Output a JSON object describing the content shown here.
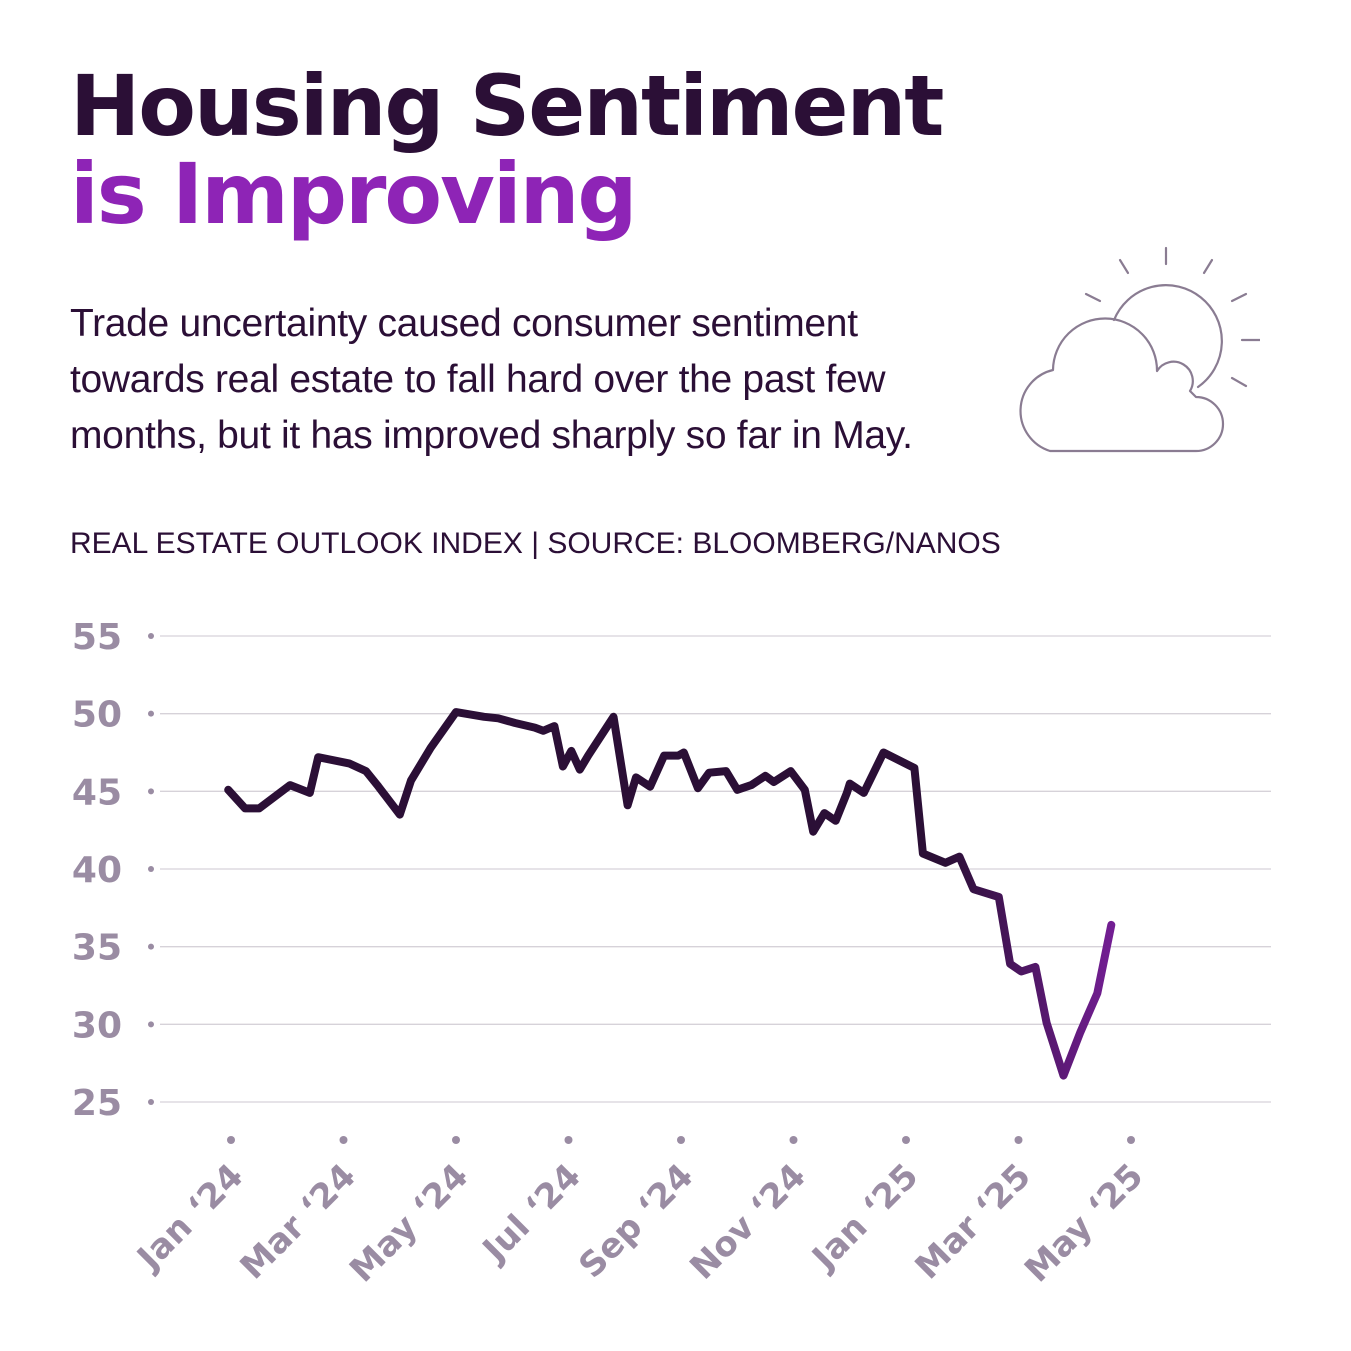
{
  "header": {
    "title_line1": "Housing Sentiment",
    "title_line2": "is Improving",
    "subtitle": "Trade uncertainty caused consumer sentiment towards real estate to fall hard over the past few months, but it has improved sharply so far in May.",
    "source": "REAL ESTATE OUTLOOK INDEX | SOURCE: BLOOMBERG/NANOS",
    "icon": "sun-behind-cloud-icon"
  },
  "colors": {
    "title": "#2b0f36",
    "accent": "#8e24b6",
    "line_dark": "#2b0f36",
    "line_purple": "#8e24b6",
    "axis_label": "#9a8ca3",
    "grid": "#d6d2d9"
  },
  "chart_data": {
    "type": "line",
    "title": "Real Estate Outlook Index",
    "xlabel": "",
    "ylabel": "",
    "ylim": [
      25,
      55
    ],
    "yticks": [
      55,
      50,
      45,
      40,
      35,
      30,
      25
    ],
    "ytick_labels": [
      "55",
      "50",
      "45",
      "40",
      "35",
      "30",
      "25"
    ],
    "xticks": [
      0,
      2,
      4,
      6,
      8,
      10,
      12,
      14,
      16
    ],
    "xtick_labels": [
      "Jan ‘24",
      "Mar ‘24",
      "May ‘24",
      "Jul ‘24",
      "Sep ‘24",
      "Nov ‘24",
      "Jan ‘25",
      "Mar ‘25",
      "May ‘25"
    ],
    "grid": true,
    "legend": "none",
    "series": [
      {
        "name": "Real Estate Outlook Index",
        "x": [
          -0.05,
          0.25,
          0.5,
          1.05,
          1.4,
          1.55,
          2.1,
          2.4,
          2.6,
          3.0,
          3.2,
          3.55,
          4.0,
          4.5,
          4.75,
          5.05,
          5.4,
          5.55,
          5.75,
          5.9,
          6.05,
          6.2,
          6.35,
          6.8,
          7.05,
          7.2,
          7.45,
          7.7,
          7.95,
          8.05,
          8.3,
          8.5,
          8.8,
          9.0,
          9.25,
          9.5,
          9.65,
          9.95,
          10.2,
          10.35,
          10.55,
          10.75,
          10.95,
          11.0,
          11.25,
          11.6,
          12.15,
          12.3,
          12.7,
          12.95,
          13.2,
          13.65,
          13.85,
          14.05,
          14.3,
          14.5,
          14.8,
          15.1,
          15.4,
          15.65,
          15.85,
          16.0,
          16.25,
          16.4,
          16.75
        ],
        "y": [
          45.1,
          43.9,
          43.9,
          45.4,
          44.9,
          47.2,
          46.8,
          46.3,
          45.4,
          43.5,
          45.7,
          47.8,
          50.1,
          49.8,
          49.7,
          49.4,
          49.1,
          48.9,
          49.2,
          46.6,
          47.6,
          46.4,
          47.3,
          49.8,
          44.1,
          45.9,
          45.3,
          47.3,
          47.3,
          47.5,
          45.2,
          46.2,
          46.3,
          45.1,
          45.4,
          46.0,
          45.6,
          46.3,
          45.1,
          42.4,
          43.6,
          43.1,
          44.9,
          45.5,
          44.9,
          47.5,
          46.5,
          41.0,
          40.4,
          40.8,
          38.7,
          38.2,
          33.9,
          33.4,
          33.7,
          30.1,
          26.7,
          29.5,
          32.0,
          36.4,
          36.4,
          36.4,
          36.4,
          36.4,
          36.4
        ]
      }
    ]
  }
}
